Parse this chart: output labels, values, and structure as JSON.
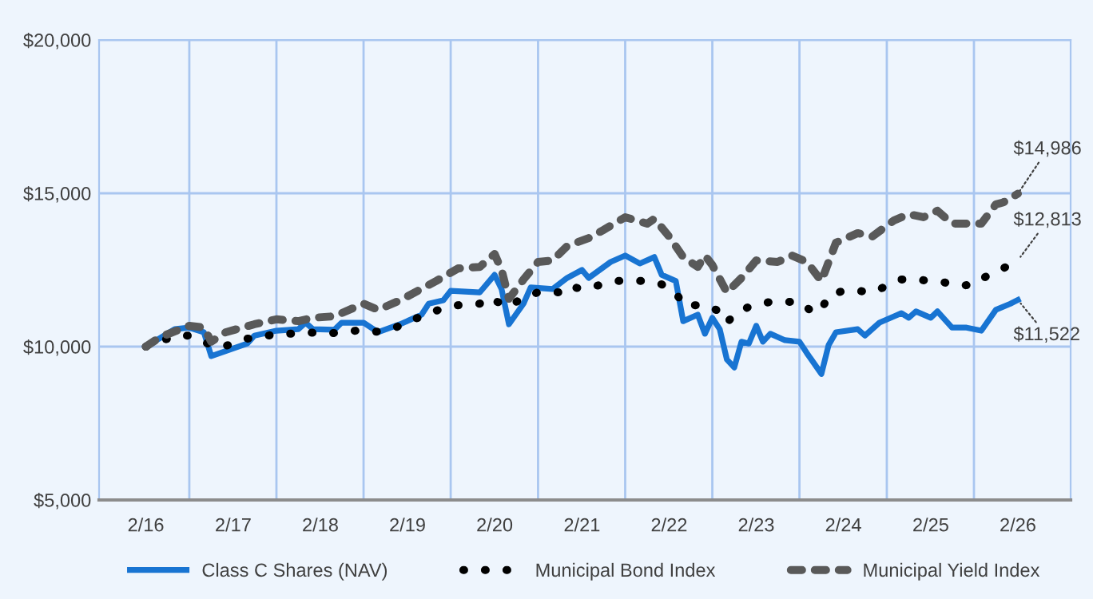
{
  "chart_data": {
    "type": "line",
    "xlim": [
      "2015-07-20",
      "2026-09-10"
    ],
    "xticks": [
      {
        "value": "2016-02",
        "label": "2/16"
      },
      {
        "value": "2016-08",
        "label": null
      },
      {
        "value": "2017-02",
        "label": "2/17"
      },
      {
        "value": "2017-08",
        "label": null
      },
      {
        "value": "2018-02",
        "label": "2/18"
      },
      {
        "value": "2018-08",
        "label": null
      },
      {
        "value": "2019-02",
        "label": "2/19"
      },
      {
        "value": "2019-08",
        "label": null
      },
      {
        "value": "2020-02",
        "label": "2/20"
      },
      {
        "value": "2020-08",
        "label": null
      },
      {
        "value": "2021-02",
        "label": "2/21"
      },
      {
        "value": "2021-08",
        "label": null
      },
      {
        "value": "2022-02",
        "label": "2/22"
      },
      {
        "value": "2022-08",
        "label": null
      },
      {
        "value": "2023-02",
        "label": "2/23"
      },
      {
        "value": "2023-08",
        "label": null
      },
      {
        "value": "2024-02",
        "label": "2/24"
      },
      {
        "value": "2024-08",
        "label": null
      },
      {
        "value": "2025-02",
        "label": "2/25"
      },
      {
        "value": "2025-08",
        "label": null
      },
      {
        "value": "2026-02",
        "label": "2/26"
      }
    ],
    "ylim": [
      5000,
      20000
    ],
    "yticks": [
      {
        "value": 5000,
        "label": "$5,000"
      },
      {
        "value": 10000,
        "label": "$10,000"
      },
      {
        "value": 15000,
        "label": "$15,000"
      },
      {
        "value": 20000,
        "label": "$20,000"
      }
    ],
    "grid": true,
    "legend": "bottom",
    "series": [
      {
        "name": "Class C Shares (NAV)",
        "color": "#1874d2",
        "line_style": "solid",
        "x": [
          "2016-02",
          "2016-06",
          "2016-08",
          "2016-10",
          "2016-11",
          "2017-04",
          "2017-05",
          "2017-08",
          "2017-11",
          "2017-12",
          "2018-01",
          "2018-04",
          "2018-05",
          "2018-08",
          "2018-10",
          "2019-01",
          "2019-04",
          "2019-05",
          "2019-07",
          "2019-08",
          "2019-12",
          "2020-02",
          "2020-03",
          "2020-04",
          "2020-06",
          "2020-07",
          "2020-10",
          "2020-12",
          "2021-02",
          "2021-03",
          "2021-06",
          "2021-08",
          "2021-10",
          "2021-12",
          "2022-01",
          "2022-03",
          "2022-04",
          "2022-06",
          "2022-07",
          "2022-08",
          "2022-09",
          "2022-10",
          "2022-11",
          "2022-12",
          "2023-01",
          "2023-02",
          "2023-03",
          "2023-04",
          "2023-06",
          "2023-08",
          "2023-09",
          "2023-11",
          "2023-12",
          "2024-01",
          "2024-04",
          "2024-05",
          "2024-07",
          "2024-09",
          "2024-10",
          "2024-11",
          "2024-12",
          "2025-02",
          "2025-03",
          "2025-05",
          "2025-07",
          "2025-09",
          "2025-11",
          "2026-01",
          "2026-02"
        ],
        "values": [
          10000,
          10570,
          10620,
          10470,
          9690,
          10100,
          10360,
          10520,
          10570,
          10780,
          10570,
          10550,
          10780,
          10780,
          10470,
          10730,
          11040,
          11400,
          11510,
          11820,
          11770,
          12340,
          11880,
          10730,
          11400,
          11930,
          11880,
          12240,
          12500,
          12240,
          12760,
          12970,
          12710,
          12920,
          12340,
          12140,
          10830,
          11040,
          10420,
          10940,
          10570,
          9580,
          9320,
          10160,
          10100,
          10680,
          10160,
          10420,
          10210,
          10160,
          9790,
          9110,
          10050,
          10470,
          10570,
          10360,
          10780,
          10990,
          11090,
          10940,
          11150,
          10940,
          11150,
          10620,
          10620,
          10520,
          11200,
          11400,
          11522
        ]
      },
      {
        "name": "Municipal Bond Index",
        "color": "#000000",
        "line_style": "dotted",
        "x": [
          "2016-02",
          "2016-04",
          "2016-06",
          "2016-08",
          "2016-12",
          "2017-02",
          "2017-04",
          "2017-06",
          "2017-08",
          "2017-10",
          "2017-12",
          "2018-03",
          "2018-05",
          "2018-07",
          "2018-09",
          "2018-11",
          "2019-01",
          "2019-03",
          "2019-05",
          "2019-07",
          "2019-09",
          "2019-12",
          "2020-01",
          "2020-03",
          "2020-04",
          "2020-06",
          "2020-08",
          "2020-11",
          "2020-12",
          "2021-02",
          "2021-05",
          "2021-07",
          "2021-09",
          "2021-11",
          "2022-01",
          "2022-03",
          "2022-04",
          "2022-06",
          "2022-07",
          "2022-09",
          "2022-10",
          "2022-11",
          "2023-01",
          "2023-02",
          "2023-04",
          "2023-06",
          "2023-08",
          "2023-10",
          "2023-11",
          "2023-12",
          "2024-02",
          "2024-04",
          "2024-06",
          "2024-08",
          "2024-10",
          "2024-12",
          "2025-02",
          "2025-04",
          "2025-06",
          "2025-08",
          "2025-10",
          "2025-12",
          "2026-02"
        ],
        "values": [
          10000,
          10160,
          10360,
          10360,
          9950,
          10100,
          10260,
          10310,
          10420,
          10420,
          10470,
          10420,
          10470,
          10520,
          10470,
          10520,
          10680,
          10890,
          11090,
          11250,
          11350,
          11400,
          11610,
          11400,
          11300,
          11610,
          11770,
          11770,
          11980,
          11880,
          12030,
          12140,
          12140,
          12140,
          12030,
          11770,
          11350,
          11350,
          11350,
          11150,
          10780,
          11040,
          11300,
          11350,
          11460,
          11460,
          11460,
          11090,
          11200,
          11670,
          11820,
          11820,
          11770,
          11980,
          12190,
          12190,
          12140,
          12090,
          11980,
          12030,
          12340,
          12550,
          12813
        ]
      },
      {
        "name": "Municipal Yield Index",
        "color": "#595959",
        "line_style": "dashed",
        "x": [
          "2016-02",
          "2016-04",
          "2016-08",
          "2016-10",
          "2016-11",
          "2017-01",
          "2017-05",
          "2017-08",
          "2017-11",
          "2018-01",
          "2018-04",
          "2018-08",
          "2018-10",
          "2019-01",
          "2019-06",
          "2019-09",
          "2019-12",
          "2020-02",
          "2020-03",
          "2020-04",
          "2020-06",
          "2020-08",
          "2020-10",
          "2020-12",
          "2021-03",
          "2021-05",
          "2021-08",
          "2021-11",
          "2021-12",
          "2022-02",
          "2022-04",
          "2022-06",
          "2022-07",
          "2022-08",
          "2022-10",
          "2022-12",
          "2023-02",
          "2023-05",
          "2023-07",
          "2023-09",
          "2023-11",
          "2024-01",
          "2024-04",
          "2024-06",
          "2024-09",
          "2024-11",
          "2025-01",
          "2025-03",
          "2025-05",
          "2025-09",
          "2025-11",
          "2025-12",
          "2026-02"
        ],
        "values": [
          10000,
          10310,
          10680,
          10620,
          10160,
          10470,
          10730,
          10890,
          10830,
          10940,
          10990,
          11400,
          11200,
          11510,
          12140,
          12550,
          12600,
          13020,
          12500,
          11560,
          12190,
          12760,
          12810,
          13280,
          13540,
          13800,
          14220,
          14010,
          14170,
          13590,
          12920,
          12600,
          12970,
          12660,
          11770,
          12240,
          12810,
          12760,
          12970,
          12760,
          12140,
          13390,
          13700,
          13590,
          14120,
          14320,
          14220,
          14430,
          14010,
          14010,
          14640,
          14700,
          14986
        ]
      }
    ],
    "annotations": [
      {
        "text": "$14,986",
        "x": "2026-02",
        "y": 14986
      },
      {
        "text": "$12,813",
        "x": "2026-02",
        "y": 12813
      },
      {
        "text": "$11,522",
        "x": "2026-02",
        "y": 11522
      }
    ]
  }
}
